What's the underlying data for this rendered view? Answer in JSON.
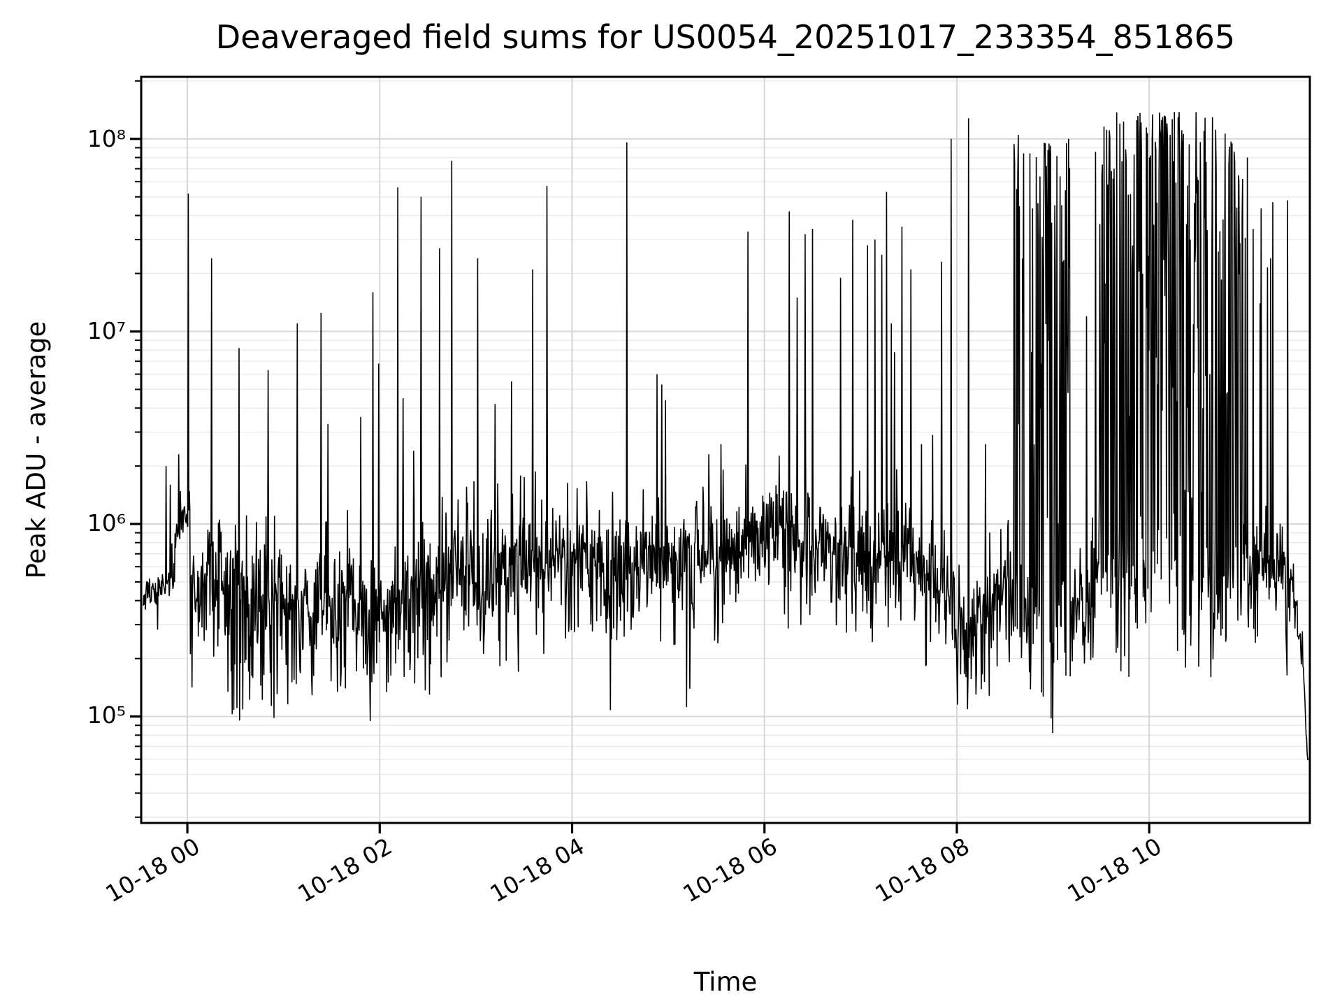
{
  "chart_data": {
    "type": "line",
    "title": "Deaveraged field sums for US0054_20251017_233354_851865",
    "xlabel": "Time",
    "ylabel": "Peak ADU - average",
    "line_color": "#000000",
    "background_color": "#ffffff",
    "grid": {
      "visible": true,
      "major_color": "#d6d6d6",
      "minor_color": "#e9e9e9"
    },
    "legend": "none",
    "x_axis": {
      "kind": "datetime",
      "reference": "2025-10-18 00:00",
      "range_hours": [
        -0.48,
        11.67
      ],
      "ticks": [
        {
          "t": 0,
          "label": "10-18 00"
        },
        {
          "t": 2,
          "label": "10-18 02"
        },
        {
          "t": 4,
          "label": "10-18 04"
        },
        {
          "t": 6,
          "label": "10-18 06"
        },
        {
          "t": 8,
          "label": "10-18 08"
        },
        {
          "t": 10,
          "label": "10-18 10"
        }
      ]
    },
    "y_axis": {
      "scale": "log",
      "range": [
        28000,
        210000000
      ],
      "ticks": [
        {
          "value": 100000000,
          "label": "10⁸"
        },
        {
          "value": 10000000,
          "label": "10⁷"
        },
        {
          "value": 1000000,
          "label": "10⁶"
        },
        {
          "value": 100000,
          "label": "10⁵"
        }
      ]
    },
    "series_model": {
      "description": "noisy log-scale time series: baseline band with needle spikes and two dense high bursts",
      "step_hours": 0.0055,
      "baseline_segments": [
        {
          "t0": -0.458,
          "t1": -0.13,
          "c0": 5.62,
          "c1": 5.68,
          "s": 0.06,
          "up_p": 0.03,
          "up_a": 0.15,
          "tail_p": 0.12,
          "tail_a": 0.18,
          "dip_p": 0,
          "dip_l": 0
        },
        {
          "t0": -0.13,
          "t1": 0.03,
          "c0": 5.94,
          "c1": 6.0,
          "s": 0.09,
          "up_p": 0.04,
          "up_a": 0.2,
          "tail_p": 0.08,
          "tail_a": 0.2,
          "dip_p": 0,
          "dip_l": 0
        },
        {
          "t0": 0.03,
          "t1": 0.45,
          "c0": 5.66,
          "c1": 5.64,
          "s": 0.17,
          "up_p": 0.05,
          "up_a": 0.25,
          "tail_p": 0.3,
          "tail_a": 0.38,
          "dip_p": 0.02,
          "dip_l": 5.12
        },
        {
          "t0": 0.45,
          "t1": 1.35,
          "c0": 5.6,
          "c1": 5.62,
          "s": 0.18,
          "up_p": 0.05,
          "up_a": 0.3,
          "tail_p": 0.32,
          "tail_a": 0.42,
          "dip_p": 0.035,
          "dip_l": 4.95
        },
        {
          "t0": 1.35,
          "t1": 2.1,
          "c0": 5.66,
          "c1": 5.7,
          "s": 0.17,
          "up_p": 0.05,
          "up_a": 0.28,
          "tail_p": 0.28,
          "tail_a": 0.36,
          "dip_p": 0.02,
          "dip_l": 5.05
        },
        {
          "t0": 2.1,
          "t1": 2.75,
          "c0": 5.72,
          "c1": 5.74,
          "s": 0.17,
          "up_p": 0.05,
          "up_a": 0.28,
          "tail_p": 0.25,
          "tail_a": 0.33,
          "dip_p": 0.015,
          "dip_l": 5.02
        },
        {
          "t0": 2.75,
          "t1": 4.1,
          "c0": 5.8,
          "c1": 5.84,
          "s": 0.16,
          "up_p": 0.06,
          "up_a": 0.28,
          "tail_p": 0.25,
          "tail_a": 0.3,
          "dip_p": 0.012,
          "dip_l": 5.15
        },
        {
          "t0": 4.1,
          "t1": 5.3,
          "c0": 5.84,
          "c1": 5.88,
          "s": 0.15,
          "up_p": 0.06,
          "up_a": 0.26,
          "tail_p": 0.22,
          "tail_a": 0.3,
          "dip_p": 0.012,
          "dip_l": 5.02
        },
        {
          "t0": 5.3,
          "t1": 6.3,
          "c0": 5.9,
          "c1": 5.9,
          "s": 0.15,
          "up_p": 0.06,
          "up_a": 0.26,
          "tail_p": 0.22,
          "tail_a": 0.3,
          "dip_p": 0.01,
          "dip_l": 5.3
        },
        {
          "t0": 6.3,
          "t1": 7.55,
          "c0": 5.86,
          "c1": 5.86,
          "s": 0.16,
          "up_p": 0.06,
          "up_a": 0.26,
          "tail_p": 0.25,
          "tail_a": 0.3,
          "dip_p": 0.008,
          "dip_l": 5.32
        },
        {
          "t0": 7.55,
          "t1": 7.95,
          "c0": 5.8,
          "c1": 5.78,
          "s": 0.15,
          "up_p": 0.05,
          "up_a": 0.24,
          "tail_p": 0.25,
          "tail_a": 0.3,
          "dip_p": 0.01,
          "dip_l": 5.25
        },
        {
          "t0": 7.95,
          "t1": 8.58,
          "c0": 5.6,
          "c1": 5.64,
          "s": 0.17,
          "up_p": 0.05,
          "up_a": 0.24,
          "tail_p": 0.3,
          "tail_a": 0.36,
          "dip_p": 0.02,
          "dip_l": 5.15
        },
        {
          "t0": 8.58,
          "t1": 9.18,
          "c0": 5.58,
          "c1": 5.58,
          "s": 0.2,
          "up_p": 0.05,
          "up_a": 0.3,
          "tail_p": 0.3,
          "tail_a": 0.4,
          "dip_p": 0.02,
          "dip_l": 5.05
        },
        {
          "t0": 9.18,
          "t1": 9.42,
          "c0": 5.6,
          "c1": 5.64,
          "s": 0.18,
          "up_p": 0.05,
          "up_a": 0.25,
          "tail_p": 0.3,
          "tail_a": 0.36,
          "dip_p": 0.04,
          "dip_l": 5.06
        },
        {
          "t0": 9.42,
          "t1": 10.95,
          "c0": 5.76,
          "c1": 5.8,
          "s": 0.2,
          "up_p": 0.08,
          "up_a": 0.3,
          "tail_p": 0.25,
          "tail_a": 0.36,
          "dip_p": 0.008,
          "dip_l": 5.22
        },
        {
          "t0": 10.95,
          "t1": 11.5,
          "c0": 5.88,
          "c1": 5.86,
          "s": 0.13,
          "up_p": 0.05,
          "up_a": 0.22,
          "tail_p": 0.2,
          "tail_a": 0.3,
          "dip_p": 0.012,
          "dip_l": 5.12
        },
        {
          "t0": 11.5,
          "t1": 11.6,
          "c0": 5.75,
          "c1": 5.35,
          "s": 0.1,
          "up_p": 0.02,
          "up_a": 0.1,
          "tail_p": 0.2,
          "tail_a": 0.2,
          "dip_p": 0,
          "dip_l": 0
        },
        {
          "t0": 11.6,
          "t1": 11.66,
          "c0": 5.3,
          "c1": 4.72,
          "s": 0.06,
          "up_p": 0,
          "up_a": 0,
          "tail_p": 0.1,
          "tail_a": 0.1,
          "dip_p": 0,
          "dip_l": 0
        }
      ],
      "bursts": [
        {
          "t0": 8.58,
          "t1": 9.18,
          "p_top": 0.26,
          "top_min": 7.15,
          "top_max": 7.98,
          "skew": true,
          "p_mid": 0.12,
          "mid_min": 6.3,
          "mid_max": 7.1
        },
        {
          "t0": 9.42,
          "t1": 10.95,
          "p_top": 0.36,
          "top_min": 7.25,
          "top_max": 8.14,
          "skew": true,
          "p_mid": 0.14,
          "mid_min": 6.5,
          "mid_max": 7.6,
          "ramp_in_until": 9.54,
          "top_max_start": 7.95,
          "ramp_out_from": 10.78,
          "top_max_end": 7.82
        },
        {
          "t0": 10.95,
          "t1": 11.3,
          "p_top": 0.05,
          "top_min": 6.9,
          "top_max": 7.75,
          "skew": false,
          "p_mid": 0,
          "mid_min": 0,
          "mid_max": 0
        }
      ],
      "spikes": [
        [
          -0.22,
          2000000
        ],
        [
          -0.18,
          1600000
        ],
        [
          -0.09,
          2300000
        ],
        [
          0.01,
          52000000
        ],
        [
          0.25,
          24000000
        ],
        [
          0.54,
          8200000
        ],
        [
          0.84,
          6300000
        ],
        [
          1.14,
          11000000
        ],
        [
          1.39,
          12500000
        ],
        [
          1.46,
          3300000
        ],
        [
          1.8,
          3600000
        ],
        [
          1.93,
          16000000
        ],
        [
          1.99,
          6800000
        ],
        [
          2.19,
          56000000
        ],
        [
          2.24,
          4500000
        ],
        [
          2.35,
          2400000
        ],
        [
          2.43,
          50000000
        ],
        [
          2.62,
          27000000
        ],
        [
          2.75,
          77000000
        ],
        [
          3.02,
          24000000
        ],
        [
          3.2,
          4200000
        ],
        [
          3.37,
          5500000
        ],
        [
          3.59,
          21000000
        ],
        [
          3.74,
          57000000
        ],
        [
          4.57,
          96000000
        ],
        [
          4.88,
          6000000
        ],
        [
          4.93,
          5300000
        ],
        [
          4.97,
          4400000
        ],
        [
          5.42,
          2300000
        ],
        [
          5.55,
          2600000
        ],
        [
          5.83,
          33000000
        ],
        [
          6.26,
          42000000
        ],
        [
          6.34,
          15000000
        ],
        [
          6.42,
          32000000
        ],
        [
          6.5,
          34000000
        ],
        [
          6.79,
          19000000
        ],
        [
          6.92,
          38000000
        ],
        [
          7.07,
          28000000
        ],
        [
          7.15,
          30000000
        ],
        [
          7.22,
          25000000
        ],
        [
          7.27,
          53000000
        ],
        [
          7.32,
          11000000
        ],
        [
          7.35,
          7800000
        ],
        [
          7.43,
          35000000
        ],
        [
          7.52,
          21000000
        ],
        [
          7.63,
          2600000
        ],
        [
          7.75,
          2900000
        ],
        [
          7.84,
          23000000
        ],
        [
          7.94,
          100000000
        ],
        [
          8.12,
          128000000
        ],
        [
          8.3,
          2600000
        ],
        [
          8.64,
          105000000
        ],
        [
          9.16,
          100000000
        ],
        [
          9.35,
          12000000
        ],
        [
          10.97,
          62000000
        ],
        [
          11.02,
          80000000
        ],
        [
          11.08,
          34000000
        ],
        [
          11.15,
          14000000
        ],
        [
          11.26,
          24000000
        ],
        [
          11.44,
          48000000
        ]
      ]
    }
  }
}
